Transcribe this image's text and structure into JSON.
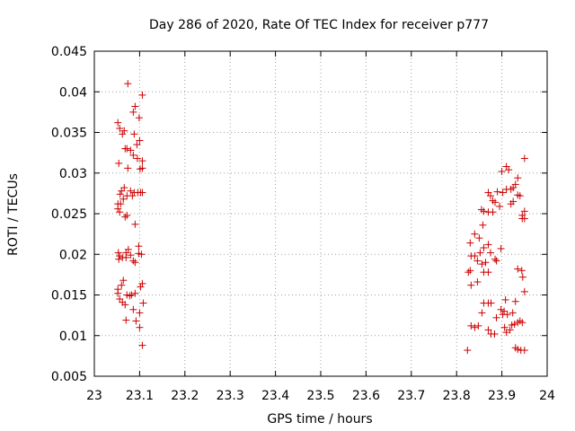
{
  "chart_data": {
    "type": "scatter",
    "title": "Day 286 of 2020, Rate Of TEC Index for receiver p777",
    "xlabel": "GPS time / hours",
    "ylabel": "ROTI / TECUs",
    "xlim": [
      23,
      24
    ],
    "ylim": [
      0.005,
      0.045
    ],
    "grid": true,
    "marker": "+",
    "color": "#cc0000",
    "xticks": [
      "23",
      "23.1",
      "23.2",
      "23.3",
      "23.4",
      "23.5",
      "23.6",
      "23.7",
      "23.8",
      "23.9",
      "24"
    ],
    "yticks": [
      "0.005",
      "0.01",
      "0.015",
      "0.02",
      "0.025",
      "0.03",
      "0.035",
      "0.04",
      "0.045"
    ],
    "series": [
      {
        "name": "ROTI",
        "points": [
          [
            23.074,
            0.041
          ],
          [
            23.106,
            0.0396
          ],
          [
            23.09,
            0.0382
          ],
          [
            23.086,
            0.0375
          ],
          [
            23.099,
            0.0368
          ],
          [
            23.052,
            0.0362
          ],
          [
            23.056,
            0.0355
          ],
          [
            23.066,
            0.0352
          ],
          [
            23.062,
            0.0348
          ],
          [
            23.088,
            0.0348
          ],
          [
            23.1,
            0.034
          ],
          [
            23.094,
            0.0335
          ],
          [
            23.072,
            0.033
          ],
          [
            23.068,
            0.033
          ],
          [
            23.08,
            0.0328
          ],
          [
            23.086,
            0.0322
          ],
          [
            23.095,
            0.0318
          ],
          [
            23.106,
            0.0315
          ],
          [
            23.054,
            0.0312
          ],
          [
            23.074,
            0.0306
          ],
          [
            23.101,
            0.0305
          ],
          [
            23.106,
            0.0306
          ],
          [
            23.066,
            0.0282
          ],
          [
            23.06,
            0.0278
          ],
          [
            23.057,
            0.0274
          ],
          [
            23.08,
            0.0278
          ],
          [
            23.088,
            0.0276
          ],
          [
            23.096,
            0.0276
          ],
          [
            23.102,
            0.0276
          ],
          [
            23.106,
            0.0276
          ],
          [
            23.072,
            0.0272
          ],
          [
            23.084,
            0.0272
          ],
          [
            23.064,
            0.0268
          ],
          [
            23.058,
            0.0262
          ],
          [
            23.052,
            0.0262
          ],
          [
            23.052,
            0.0256
          ],
          [
            23.056,
            0.0252
          ],
          [
            23.072,
            0.0248
          ],
          [
            23.068,
            0.0246
          ],
          [
            23.09,
            0.0237
          ],
          [
            23.098,
            0.021
          ],
          [
            23.075,
            0.0206
          ],
          [
            23.07,
            0.0202
          ],
          [
            23.053,
            0.0202
          ],
          [
            23.098,
            0.0201
          ],
          [
            23.104,
            0.02
          ],
          [
            23.08,
            0.0199
          ],
          [
            23.056,
            0.0198
          ],
          [
            23.062,
            0.0196
          ],
          [
            23.07,
            0.0196
          ],
          [
            23.054,
            0.0194
          ],
          [
            23.086,
            0.0192
          ],
          [
            23.09,
            0.019
          ],
          [
            23.064,
            0.0168
          ],
          [
            23.106,
            0.0164
          ],
          [
            23.06,
            0.0162
          ],
          [
            23.102,
            0.016
          ],
          [
            23.052,
            0.0157
          ],
          [
            23.052,
            0.0152
          ],
          [
            23.09,
            0.0152
          ],
          [
            23.082,
            0.015
          ],
          [
            23.078,
            0.0149
          ],
          [
            23.072,
            0.015
          ],
          [
            23.056,
            0.0145
          ],
          [
            23.062,
            0.0141
          ],
          [
            23.108,
            0.014
          ],
          [
            23.068,
            0.0138
          ],
          [
            23.086,
            0.0132
          ],
          [
            23.1,
            0.0128
          ],
          [
            23.07,
            0.0119
          ],
          [
            23.092,
            0.0118
          ],
          [
            23.1,
            0.011
          ],
          [
            23.106,
            0.0088
          ],
          [
            23.95,
            0.0318
          ],
          [
            23.91,
            0.0308
          ],
          [
            23.9,
            0.0302
          ],
          [
            23.915,
            0.0304
          ],
          [
            23.935,
            0.0294
          ],
          [
            23.93,
            0.0286
          ],
          [
            23.925,
            0.0282
          ],
          [
            23.91,
            0.028
          ],
          [
            23.92,
            0.028
          ],
          [
            23.89,
            0.0277
          ],
          [
            23.902,
            0.0276
          ],
          [
            23.87,
            0.0276
          ],
          [
            23.875,
            0.0272
          ],
          [
            23.935,
            0.0273
          ],
          [
            23.94,
            0.0272
          ],
          [
            23.88,
            0.0266
          ],
          [
            23.885,
            0.0264
          ],
          [
            23.925,
            0.0265
          ],
          [
            23.92,
            0.0262
          ],
          [
            23.895,
            0.0259
          ],
          [
            23.855,
            0.0255
          ],
          [
            23.86,
            0.0253
          ],
          [
            23.87,
            0.0252
          ],
          [
            23.88,
            0.0252
          ],
          [
            23.95,
            0.0253
          ],
          [
            23.945,
            0.0248
          ],
          [
            23.95,
            0.0244
          ],
          [
            23.945,
            0.0244
          ],
          [
            23.858,
            0.0236
          ],
          [
            23.84,
            0.0225
          ],
          [
            23.85,
            0.022
          ],
          [
            23.83,
            0.0214
          ],
          [
            23.87,
            0.0212
          ],
          [
            23.86,
            0.0208
          ],
          [
            23.898,
            0.0207
          ],
          [
            23.875,
            0.0202
          ],
          [
            23.852,
            0.0202
          ],
          [
            23.832,
            0.0198
          ],
          [
            23.84,
            0.0198
          ],
          [
            23.885,
            0.0194
          ],
          [
            23.888,
            0.0192
          ],
          [
            23.846,
            0.0192
          ],
          [
            23.864,
            0.019
          ],
          [
            23.856,
            0.0188
          ],
          [
            23.83,
            0.018
          ],
          [
            23.935,
            0.0182
          ],
          [
            23.944,
            0.018
          ],
          [
            23.826,
            0.0178
          ],
          [
            23.87,
            0.0178
          ],
          [
            23.86,
            0.0178
          ],
          [
            23.946,
            0.0172
          ],
          [
            23.846,
            0.0166
          ],
          [
            23.832,
            0.0162
          ],
          [
            23.95,
            0.0154
          ],
          [
            23.908,
            0.0144
          ],
          [
            23.93,
            0.0142
          ],
          [
            23.86,
            0.014
          ],
          [
            23.87,
            0.014
          ],
          [
            23.876,
            0.014
          ],
          [
            23.898,
            0.0132
          ],
          [
            23.905,
            0.013
          ],
          [
            23.856,
            0.0128
          ],
          [
            23.924,
            0.0128
          ],
          [
            23.902,
            0.0126
          ],
          [
            23.912,
            0.0126
          ],
          [
            23.888,
            0.0122
          ],
          [
            23.94,
            0.0118
          ],
          [
            23.935,
            0.0116
          ],
          [
            23.945,
            0.0116
          ],
          [
            23.928,
            0.0114
          ],
          [
            23.922,
            0.0113
          ],
          [
            23.832,
            0.0112
          ],
          [
            23.84,
            0.011
          ],
          [
            23.848,
            0.0112
          ],
          [
            23.906,
            0.011
          ],
          [
            23.87,
            0.0107
          ],
          [
            23.918,
            0.0107
          ],
          [
            23.91,
            0.0104
          ],
          [
            23.876,
            0.0102
          ],
          [
            23.884,
            0.0102
          ],
          [
            23.93,
            0.0085
          ],
          [
            23.935,
            0.0083
          ],
          [
            23.942,
            0.0082
          ],
          [
            23.95,
            0.0082
          ],
          [
            23.824,
            0.0082
          ]
        ]
      }
    ]
  }
}
